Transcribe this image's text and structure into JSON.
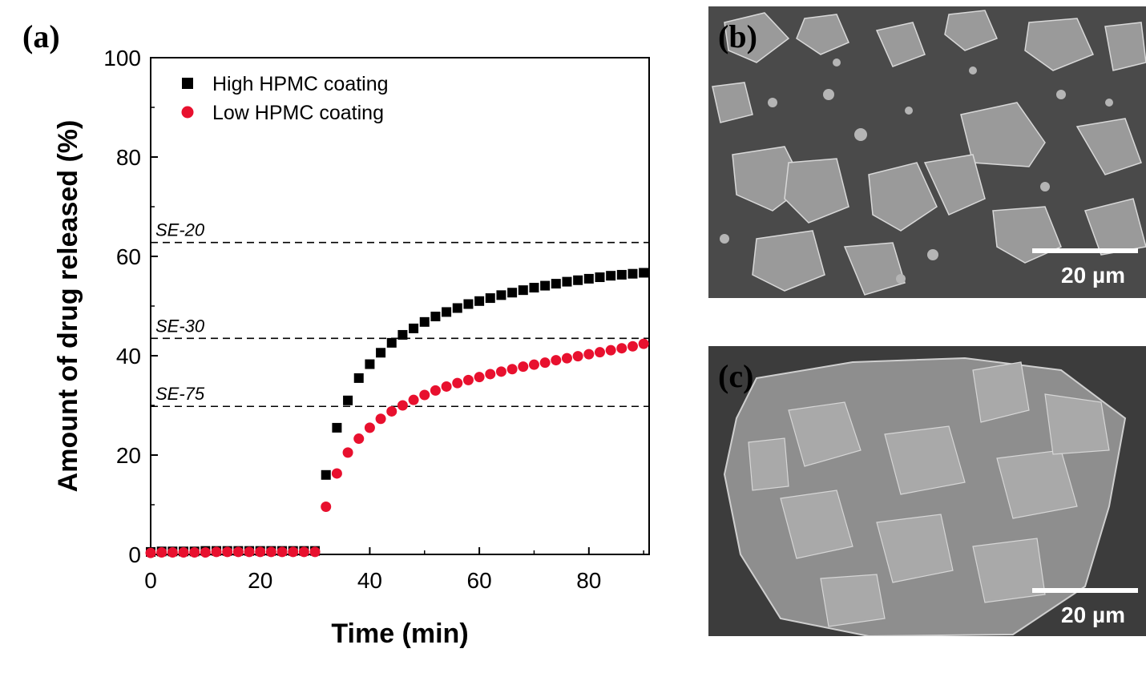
{
  "panel_labels": {
    "a": "(a)",
    "b": "(b)",
    "c": "(c)"
  },
  "scale_bars": {
    "b": "20 µm",
    "c": "20 µm"
  },
  "chart_data": {
    "type": "scatter",
    "xlabel": "Time (min)",
    "ylabel": "Amount of drug released (%)",
    "xlim": [
      0,
      91
    ],
    "ylim": [
      0,
      100
    ],
    "xticks": [
      0,
      20,
      40,
      60,
      80
    ],
    "yticks": [
      0,
      20,
      40,
      60,
      80,
      100
    ],
    "legend_position": "top-left",
    "reference_lines": [
      {
        "label": "SE-20",
        "y": 62.8
      },
      {
        "label": "SE-30",
        "y": 43.5
      },
      {
        "label": "SE-75",
        "y": 29.8
      }
    ],
    "series": [
      {
        "name": "High HPMC coating",
        "marker": "square",
        "color": "#000000",
        "x": [
          0,
          2,
          4,
          6,
          8,
          10,
          12,
          14,
          16,
          18,
          20,
          22,
          24,
          26,
          28,
          30,
          32,
          34,
          36,
          38,
          40,
          42,
          44,
          46,
          48,
          50,
          52,
          54,
          56,
          58,
          60,
          62,
          64,
          66,
          68,
          70,
          72,
          74,
          76,
          78,
          80,
          82,
          84,
          86,
          88,
          90
        ],
        "y": [
          0.5,
          0.6,
          0.6,
          0.6,
          0.6,
          0.7,
          0.7,
          0.7,
          0.7,
          0.7,
          0.7,
          0.7,
          0.7,
          0.7,
          0.7,
          0.7,
          16.0,
          25.5,
          31.0,
          35.5,
          38.3,
          40.6,
          42.6,
          44.2,
          45.5,
          46.8,
          47.9,
          48.8,
          49.6,
          50.4,
          51.0,
          51.6,
          52.2,
          52.7,
          53.2,
          53.7,
          54.1,
          54.5,
          54.9,
          55.2,
          55.5,
          55.8,
          56.1,
          56.3,
          56.5,
          56.7
        ]
      },
      {
        "name": "Low HPMC coating",
        "marker": "circle",
        "color": "#e8102e",
        "x": [
          0,
          2,
          4,
          6,
          8,
          10,
          12,
          14,
          16,
          18,
          20,
          22,
          24,
          26,
          28,
          30,
          32,
          34,
          36,
          38,
          40,
          42,
          44,
          46,
          48,
          50,
          52,
          54,
          56,
          58,
          60,
          62,
          64,
          66,
          68,
          70,
          72,
          74,
          76,
          78,
          80,
          82,
          84,
          86,
          88,
          90
        ],
        "y": [
          0.3,
          0.4,
          0.4,
          0.4,
          0.4,
          0.4,
          0.5,
          0.5,
          0.5,
          0.5,
          0.5,
          0.5,
          0.5,
          0.5,
          0.5,
          0.5,
          9.6,
          16.3,
          20.5,
          23.3,
          25.5,
          27.3,
          28.8,
          30.0,
          31.1,
          32.1,
          33.0,
          33.8,
          34.5,
          35.1,
          35.7,
          36.3,
          36.8,
          37.3,
          37.8,
          38.2,
          38.6,
          39.1,
          39.5,
          39.9,
          40.3,
          40.7,
          41.1,
          41.5,
          41.9,
          42.4
        ]
      }
    ]
  }
}
